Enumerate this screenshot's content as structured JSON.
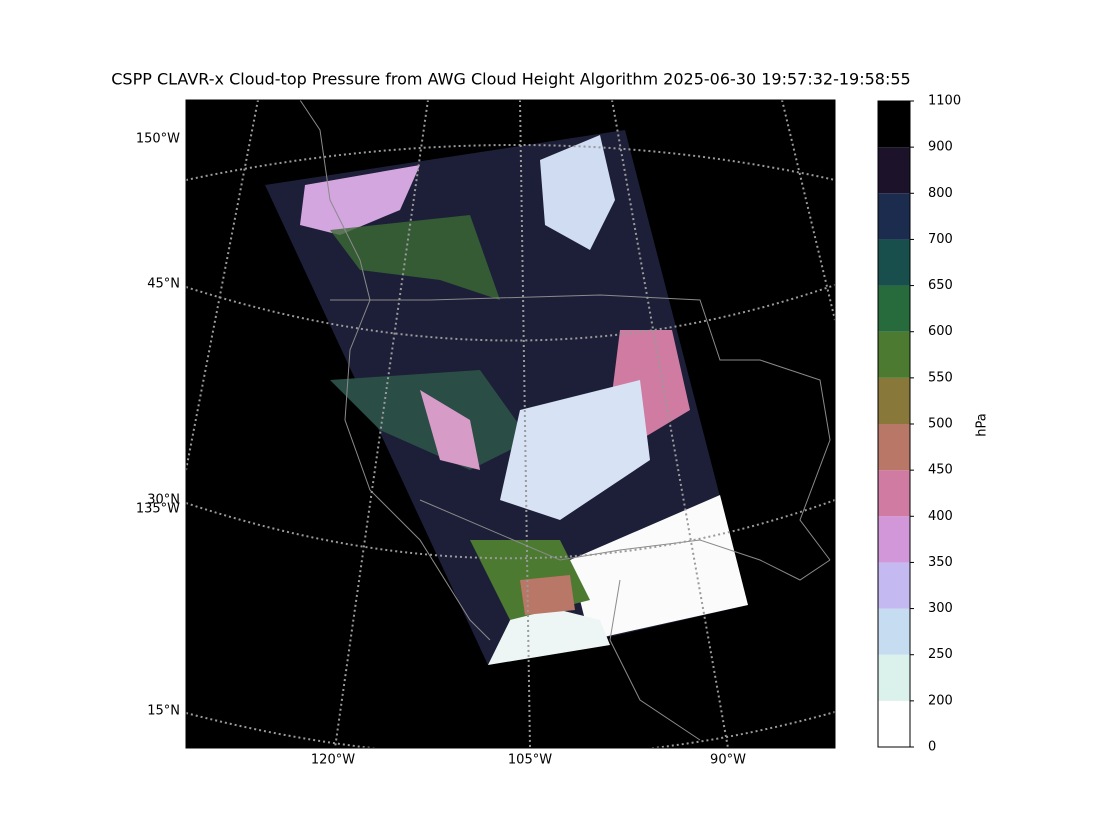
{
  "title": "CSPP CLAVR-x Cloud-top Pressure from AWG Cloud Height Algorithm 2025-06-30 19:57:32-19:58:55",
  "map": {
    "lat_labels": [
      "45°N",
      "30°N",
      "15°N"
    ],
    "lon_labels_left": [
      "150°W",
      "135°W"
    ],
    "lon_labels_bottom": [
      "120°W",
      "105°W",
      "90°W"
    ]
  },
  "colorbar": {
    "label": "hPa",
    "ticks": [
      0,
      200,
      250,
      300,
      350,
      400,
      450,
      500,
      550,
      600,
      650,
      700,
      800,
      900,
      1100
    ],
    "colors": [
      "#ffffff",
      "#dbf1ec",
      "#c6dcf1",
      "#c4b9f1",
      "#d197d9",
      "#d07ba1",
      "#b97767",
      "#887839",
      "#4b7a30",
      "#276a3c",
      "#184f4c",
      "#1c2c4f",
      "#1c1229",
      "#000000"
    ]
  }
}
